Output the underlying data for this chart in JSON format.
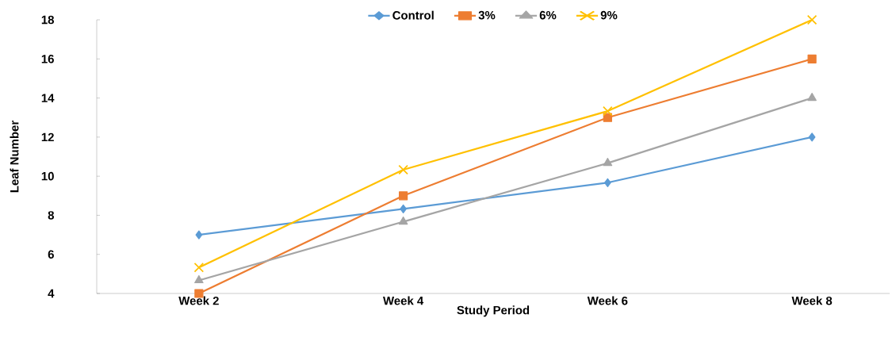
{
  "chart_data": {
    "type": "line",
    "xlabel": "Study Period",
    "ylabel": "Leaf Number",
    "categories": [
      "Week 2",
      "Week 4",
      "Week 6",
      "Week 8"
    ],
    "series": [
      {
        "name": "Control",
        "color": "#5b9bd5",
        "marker": "diamond",
        "values": [
          7,
          8.33,
          9.67,
          12
        ]
      },
      {
        "name": "3%",
        "color": "#ed7d31",
        "marker": "square",
        "values": [
          4,
          9,
          13,
          16
        ]
      },
      {
        "name": "6%",
        "color": "#a5a5a5",
        "marker": "triangle",
        "values": [
          4.67,
          7.67,
          10.67,
          14
        ]
      },
      {
        "name": "9%",
        "color": "#ffc000",
        "marker": "cross",
        "values": [
          5.33,
          10.33,
          13.33,
          18
        ]
      }
    ],
    "ylim": [
      4,
      18
    ],
    "yticks": [
      4,
      6,
      8,
      10,
      12,
      14,
      16,
      18
    ],
    "grid": false,
    "legend": "top"
  }
}
